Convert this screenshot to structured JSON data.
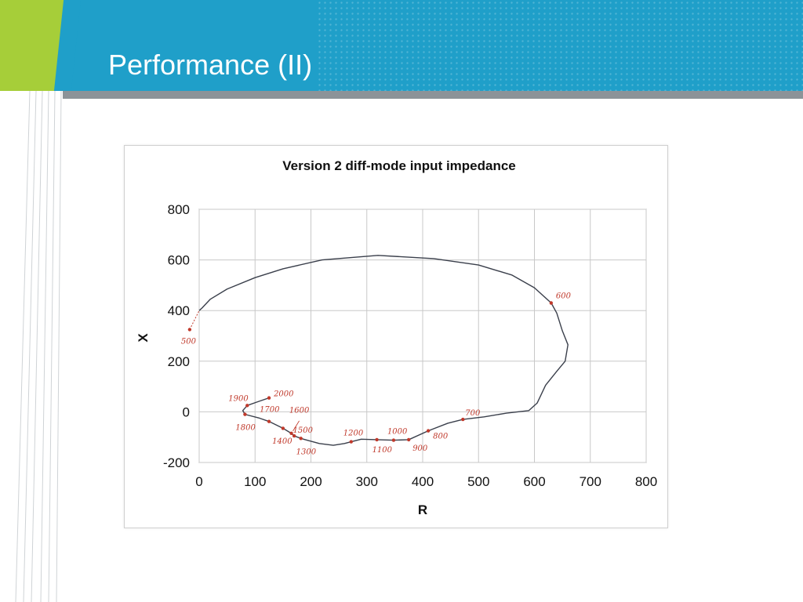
{
  "slide": {
    "title": "Performance (II)",
    "colors": {
      "header": "#1f9fc9",
      "accent": "#a6ce39",
      "bar": "#8c9398"
    }
  },
  "chart_data": {
    "type": "line",
    "title": "Version 2 diff-mode input impedance",
    "xlabel": "R",
    "ylabel": "X",
    "xlim": [
      0,
      800
    ],
    "ylim": [
      -200,
      800
    ],
    "xticks": [
      0,
      100,
      200,
      300,
      400,
      500,
      600,
      700,
      800
    ],
    "yticks": [
      -200,
      0,
      200,
      400,
      600,
      800
    ],
    "grid": true,
    "series": [
      {
        "color": "#3a3f4b",
        "x": [
          0,
          5,
          20,
          50,
          100,
          150,
          220,
          320,
          420,
          500,
          560,
          600,
          630,
          640,
          650,
          660,
          655,
          640,
          620,
          605,
          590,
          550,
          510,
          472,
          445,
          410,
          375,
          348,
          318,
          290,
          272,
          260,
          240,
          215,
          190,
          182,
          170,
          165,
          150,
          125,
          108,
          82,
          78,
          86,
          105,
          125
        ],
        "y": [
          400,
          410,
          445,
          485,
          530,
          565,
          600,
          618,
          605,
          580,
          540,
          490,
          430,
          390,
          320,
          265,
          200,
          160,
          105,
          35,
          5,
          -5,
          -20,
          -30,
          -45,
          -75,
          -110,
          -112,
          -110,
          -108,
          -118,
          -125,
          -132,
          -125,
          -110,
          -105,
          -95,
          -85,
          -65,
          -38,
          -25,
          -10,
          5,
          25,
          40,
          55
        ]
      },
      {
        "color": "#c0392b",
        "x": [
          -17,
          0
        ],
        "y": [
          325,
          400
        ]
      }
    ],
    "annotations": [
      {
        "label": "500",
        "x": -17,
        "y": 325
      },
      {
        "label": "600",
        "x": 630,
        "y": 430
      },
      {
        "label": "700",
        "x": 472,
        "y": -30
      },
      {
        "label": "800",
        "x": 410,
        "y": -75
      },
      {
        "label": "900",
        "x": 375,
        "y": -110
      },
      {
        "label": "1000",
        "x": 348,
        "y": -112
      },
      {
        "label": "1100",
        "x": 318,
        "y": -110
      },
      {
        "label": "1200",
        "x": 272,
        "y": -118
      },
      {
        "label": "1300",
        "x": 182,
        "y": -105
      },
      {
        "label": "1400",
        "x": 170,
        "y": -95
      },
      {
        "label": "1500",
        "x": 165,
        "y": -85
      },
      {
        "label": "1600",
        "x": 150,
        "y": -65
      },
      {
        "label": "1700",
        "x": 125,
        "y": -38
      },
      {
        "label": "1800",
        "x": 82,
        "y": -10
      },
      {
        "label": "1900",
        "x": 86,
        "y": 25
      },
      {
        "label": "2000",
        "x": 125,
        "y": 55
      }
    ]
  }
}
